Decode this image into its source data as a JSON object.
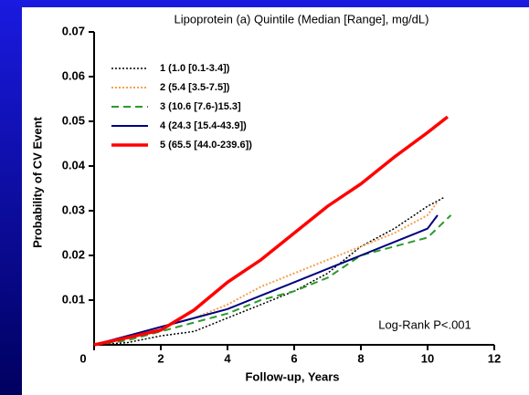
{
  "chart_data": {
    "type": "line",
    "legend_title": "Lipoprotein (a) Quintile (Median [Range], mg/dL)",
    "xlabel": "Follow-up, Years",
    "ylabel": "Probability of CV Event",
    "annotation": "Log-Rank P<.001",
    "xlim": [
      0,
      12
    ],
    "xticks": [
      0,
      2,
      4,
      6,
      8,
      10,
      12
    ],
    "ylim": [
      0,
      0.07
    ],
    "yticks": [
      0.01,
      0.02,
      0.03,
      0.04,
      0.05,
      0.06,
      0.07
    ],
    "series": [
      {
        "name": "1 (1.0 [0.1-3.4])",
        "color": "#000000",
        "dash": "dotted",
        "width": 1.5,
        "x": [
          0,
          1,
          2,
          3,
          4,
          5,
          6,
          7,
          8,
          9,
          10,
          10.5
        ],
        "values": [
          0,
          0.0005,
          0.002,
          0.003,
          0.006,
          0.009,
          0.012,
          0.016,
          0.022,
          0.026,
          0.031,
          0.033
        ]
      },
      {
        "name": "2 (5.4 [3.5-7.5])",
        "color": "#f4a050",
        "dash": "dotted",
        "width": 2,
        "x": [
          0,
          1,
          2,
          3,
          4,
          5,
          6,
          7,
          8,
          9,
          10,
          10.3
        ],
        "values": [
          0,
          0.002,
          0.004,
          0.006,
          0.009,
          0.013,
          0.016,
          0.019,
          0.022,
          0.025,
          0.029,
          0.032
        ]
      },
      {
        "name": "3 (10.6 [7.6-)15.3]",
        "color": "#2a9a2a",
        "dash": "dashed",
        "width": 2,
        "x": [
          0,
          1,
          2,
          3,
          4,
          5,
          6,
          7,
          8,
          9,
          10,
          10.7
        ],
        "values": [
          0,
          0.001,
          0.003,
          0.005,
          0.007,
          0.01,
          0.012,
          0.015,
          0.02,
          0.022,
          0.024,
          0.029
        ]
      },
      {
        "name": "4 (24.3 [15.4-43.9])",
        "color": "#000080",
        "dash": "solid",
        "width": 2,
        "x": [
          0,
          1,
          2,
          3,
          4,
          5,
          6,
          7,
          8,
          9,
          10,
          10.3
        ],
        "values": [
          0,
          0.002,
          0.004,
          0.006,
          0.008,
          0.011,
          0.014,
          0.017,
          0.02,
          0.023,
          0.026,
          0.029
        ]
      },
      {
        "name": "5 (65.5 [44.0-239.6])",
        "color": "#ff0000",
        "dash": "solid",
        "width": 3.5,
        "x": [
          0,
          1,
          2,
          3,
          4,
          5,
          6,
          7,
          8,
          9,
          10,
          10.6
        ],
        "values": [
          0,
          0.0016,
          0.0033,
          0.0078,
          0.014,
          0.019,
          0.025,
          0.031,
          0.036,
          0.042,
          0.0475,
          0.051
        ]
      }
    ]
  }
}
